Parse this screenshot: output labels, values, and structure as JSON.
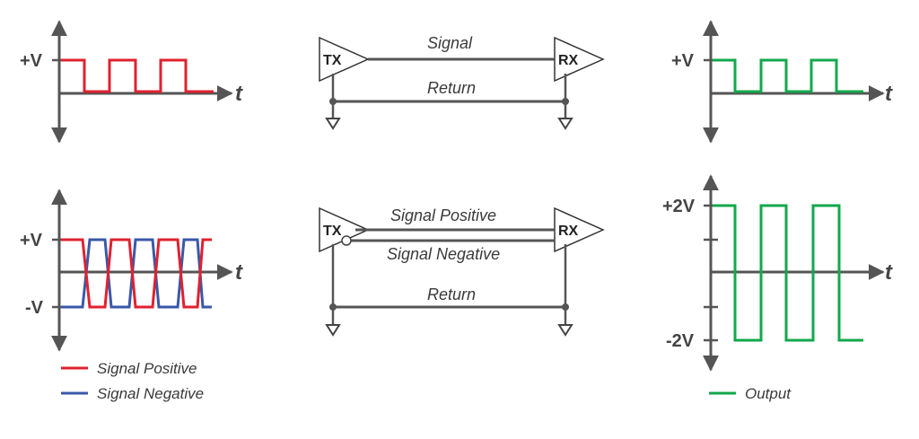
{
  "colors": {
    "axis": "#555555",
    "positive": "#e0212f",
    "negative": "#3a58a8",
    "output": "#12a84b",
    "wire": "#555555"
  },
  "single_ended": {
    "input_plot": {
      "level_label": "+V",
      "time_label": "t"
    },
    "tx_label": "TX",
    "rx_label": "RX",
    "signal_label": "Signal",
    "return_label": "Return",
    "output_plot": {
      "level_label": "+V",
      "time_label": "t"
    }
  },
  "differential": {
    "input_plot": {
      "pos_label": "+V",
      "neg_label": "-V",
      "time_label": "t"
    },
    "tx_label": "TX",
    "rx_label": "RX",
    "signal_positive_label": "Signal Positive",
    "signal_negative_label": "Signal Negative",
    "return_label": "Return",
    "output_plot": {
      "pos_label": "+2V",
      "neg_label": "-2V",
      "time_label": "t"
    }
  },
  "legend": {
    "signal_positive": "Signal Positive",
    "signal_negative": "Signal Negative",
    "output": "Output"
  }
}
